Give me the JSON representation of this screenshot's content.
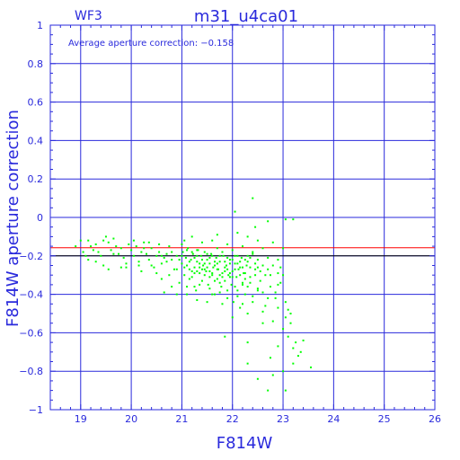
{
  "header": {
    "left_label": "WF3",
    "title": "m31_u4ca01"
  },
  "annotation": "Average aperture correction: −0.158",
  "colors": {
    "axis": "#2a2adc",
    "grid": "#2a2adc",
    "points": "#00ff00",
    "average_line": "#ff0000",
    "zero_ref_line": "#000000"
  },
  "chart_data": {
    "type": "scatter",
    "title": "m31_u4ca01",
    "xlabel": "F814W",
    "ylabel": "F814W aperture correction",
    "xlim": [
      18.4,
      26
    ],
    "ylim": [
      -1,
      1
    ],
    "x_ticks": [
      19,
      20,
      21,
      22,
      23,
      24,
      25,
      26
    ],
    "y_ticks": [
      -1,
      -0.8,
      -0.6,
      -0.4,
      -0.2,
      0,
      0.2,
      0.4,
      0.6,
      0.8,
      1
    ],
    "x_tick_labels": [
      "19",
      "20",
      "21",
      "22",
      "23",
      "24",
      "25",
      "26"
    ],
    "y_tick_labels": [
      "−1",
      "−0.8",
      "−0.6",
      "−0.4",
      "−0.2",
      "0",
      "0.2",
      "0.4",
      "0.6",
      "0.8",
      "1"
    ],
    "grid": true,
    "average_value": -0.158,
    "reference_value": -0.2,
    "points": [
      [
        19.0,
        -0.12
      ],
      [
        19.05,
        -0.18
      ],
      [
        19.1,
        -0.2
      ],
      [
        19.15,
        -0.22
      ],
      [
        19.2,
        -0.15
      ],
      [
        19.3,
        -0.14
      ],
      [
        19.35,
        -0.18
      ],
      [
        19.4,
        -0.2
      ],
      [
        19.45,
        -0.12
      ],
      [
        19.5,
        -0.1
      ],
      [
        19.55,
        -0.13
      ],
      [
        19.6,
        -0.17
      ],
      [
        19.65,
        -0.11
      ],
      [
        19.7,
        -0.15
      ],
      [
        19.75,
        -0.19
      ],
      [
        19.8,
        -0.16
      ],
      [
        19.85,
        -0.21
      ],
      [
        19.9,
        -0.24
      ],
      [
        19.95,
        -0.14
      ],
      [
        20.0,
        -0.17
      ],
      [
        20.05,
        -0.2
      ],
      [
        20.1,
        -0.15
      ],
      [
        20.15,
        -0.23
      ],
      [
        20.2,
        -0.18
      ],
      [
        20.25,
        -0.13
      ],
      [
        20.3,
        -0.19
      ],
      [
        20.35,
        -0.22
      ],
      [
        20.4,
        -0.16
      ],
      [
        20.45,
        -0.26
      ],
      [
        20.5,
        -0.2
      ],
      [
        20.55,
        -0.18
      ],
      [
        20.6,
        -0.24
      ],
      [
        20.65,
        -0.21
      ],
      [
        20.7,
        -0.19
      ],
      [
        20.75,
        -0.3
      ],
      [
        20.8,
        -0.22
      ],
      [
        20.85,
        -0.27
      ],
      [
        20.9,
        -0.2
      ],
      [
        20.95,
        -0.34
      ],
      [
        21.0,
        -0.24
      ],
      [
        21.02,
        -0.18
      ],
      [
        21.05,
        -0.3
      ],
      [
        21.08,
        -0.21
      ],
      [
        21.1,
        -0.36
      ],
      [
        21.12,
        -0.16
      ],
      [
        21.15,
        -0.27
      ],
      [
        21.18,
        -0.22
      ],
      [
        21.2,
        -0.31
      ],
      [
        21.22,
        -0.19
      ],
      [
        21.25,
        -0.26
      ],
      [
        21.28,
        -0.38
      ],
      [
        21.3,
        -0.23
      ],
      [
        21.32,
        -0.17
      ],
      [
        21.35,
        -0.29
      ],
      [
        21.38,
        -0.2
      ],
      [
        21.4,
        -0.33
      ],
      [
        21.42,
        -0.25
      ],
      [
        21.45,
        -0.18
      ],
      [
        21.48,
        -0.28
      ],
      [
        21.5,
        -0.22
      ],
      [
        21.52,
        -0.35
      ],
      [
        21.55,
        -0.24
      ],
      [
        21.58,
        -0.19
      ],
      [
        21.6,
        -0.3
      ],
      [
        21.62,
        -0.26
      ],
      [
        21.65,
        -0.4
      ],
      [
        21.68,
        -0.21
      ],
      [
        21.7,
        -0.32
      ],
      [
        21.72,
        -0.27
      ],
      [
        21.75,
        -0.23
      ],
      [
        21.78,
        -0.36
      ],
      [
        21.8,
        -0.29
      ],
      [
        21.82,
        -0.2
      ],
      [
        21.85,
        -0.33
      ],
      [
        21.88,
        -0.25
      ],
      [
        21.9,
        -0.42
      ],
      [
        21.92,
        -0.3
      ],
      [
        21.95,
        -0.22
      ],
      [
        21.98,
        -0.35
      ],
      [
        22.0,
        -0.28
      ],
      [
        22.02,
        -0.44
      ],
      [
        22.05,
        -0.24
      ],
      [
        22.08,
        -0.31
      ],
      [
        22.1,
        -0.38
      ],
      [
        22.12,
        -0.27
      ],
      [
        22.15,
        -0.47
      ],
      [
        22.18,
        -0.21
      ],
      [
        22.2,
        -0.34
      ],
      [
        22.22,
        -0.29
      ],
      [
        22.25,
        -0.4
      ],
      [
        22.28,
        -0.25
      ],
      [
        22.3,
        -0.36
      ],
      [
        22.35,
        -0.31
      ],
      [
        22.4,
        -0.44
      ],
      [
        22.45,
        -0.27
      ],
      [
        22.5,
        -0.38
      ],
      [
        22.55,
        -0.33
      ],
      [
        22.6,
        -0.49
      ],
      [
        22.65,
        -0.3
      ],
      [
        22.7,
        -0.42
      ],
      [
        22.75,
        -0.36
      ],
      [
        22.8,
        -0.54
      ],
      [
        22.85,
        -0.39
      ],
      [
        22.9,
        -0.47
      ],
      [
        22.95,
        -0.34
      ],
      [
        23.0,
        -0.58
      ],
      [
        23.05,
        -0.44
      ],
      [
        23.1,
        -0.62
      ],
      [
        23.15,
        -0.5
      ],
      [
        23.2,
        -0.68
      ],
      [
        23.3,
        -0.72
      ],
      [
        23.4,
        -0.64
      ],
      [
        23.55,
        -0.78
      ],
      [
        21.0,
        -0.2
      ],
      [
        21.1,
        -0.25
      ],
      [
        21.2,
        -0.18
      ],
      [
        21.3,
        -0.28
      ],
      [
        21.4,
        -0.22
      ],
      [
        21.5,
        -0.26
      ],
      [
        21.6,
        -0.2
      ],
      [
        21.7,
        -0.24
      ],
      [
        21.8,
        -0.18
      ],
      [
        21.9,
        -0.27
      ],
      [
        22.0,
        -0.22
      ],
      [
        22.1,
        -0.2
      ],
      [
        22.2,
        -0.26
      ],
      [
        22.3,
        -0.23
      ],
      [
        22.4,
        -0.19
      ],
      [
        22.5,
        -0.22
      ],
      [
        22.6,
        -0.25
      ],
      [
        21.25,
        -0.21
      ],
      [
        21.35,
        -0.24
      ],
      [
        21.45,
        -0.27
      ],
      [
        21.55,
        -0.21
      ],
      [
        21.65,
        -0.23
      ],
      [
        21.75,
        -0.2
      ],
      [
        21.85,
        -0.28
      ],
      [
        21.95,
        -0.24
      ],
      [
        22.05,
        -0.2
      ],
      [
        22.15,
        -0.3
      ],
      [
        22.25,
        -0.22
      ],
      [
        22.35,
        -0.26
      ],
      [
        20.9,
        -0.27
      ],
      [
        20.8,
        -0.18
      ],
      [
        20.7,
        -0.23
      ],
      [
        20.6,
        -0.2
      ],
      [
        20.95,
        -0.22
      ],
      [
        21.15,
        -0.32
      ],
      [
        21.35,
        -0.35
      ],
      [
        21.55,
        -0.31
      ],
      [
        21.75,
        -0.34
      ],
      [
        21.95,
        -0.31
      ],
      [
        22.15,
        -0.26
      ],
      [
        22.35,
        -0.34
      ],
      [
        22.55,
        -0.28
      ],
      [
        22.75,
        -0.3
      ],
      [
        22.95,
        -0.26
      ],
      [
        23.0,
        -0.3
      ],
      [
        22.9,
        -0.22
      ],
      [
        22.8,
        -0.25
      ],
      [
        22.7,
        -0.21
      ],
      [
        21.2,
        -0.1
      ],
      [
        21.6,
        -0.12
      ],
      [
        21.9,
        -0.14
      ],
      [
        22.1,
        -0.08
      ],
      [
        22.3,
        -0.1
      ],
      [
        22.5,
        -0.12
      ],
      [
        22.8,
        -0.13
      ],
      [
        23.0,
        -0.16
      ],
      [
        21.7,
        -0.09
      ],
      [
        21.4,
        -0.13
      ],
      [
        21.0,
        -0.14
      ],
      [
        22.2,
        -0.15
      ],
      [
        22.6,
        -0.16
      ],
      [
        22.4,
        0.1
      ],
      [
        22.05,
        0.03
      ],
      [
        22.7,
        -0.02
      ],
      [
        23.05,
        -0.01
      ],
      [
        23.2,
        -0.01
      ],
      [
        22.45,
        -0.05
      ],
      [
        21.5,
        -0.44
      ],
      [
        21.8,
        -0.45
      ],
      [
        22.0,
        -0.52
      ],
      [
        22.3,
        -0.5
      ],
      [
        22.6,
        -0.55
      ],
      [
        22.3,
        -0.65
      ],
      [
        21.85,
        -0.62
      ],
      [
        23.25,
        -0.65
      ],
      [
        23.35,
        -0.7
      ],
      [
        22.9,
        -0.67
      ],
      [
        22.75,
        -0.73
      ],
      [
        23.0,
        -0.8
      ],
      [
        22.8,
        -0.82
      ],
      [
        22.5,
        -0.84
      ],
      [
        22.7,
        -0.9
      ],
      [
        23.05,
        -0.9
      ],
      [
        22.3,
        -0.76
      ],
      [
        23.2,
        -0.76
      ],
      [
        20.2,
        -0.28
      ],
      [
        20.4,
        -0.25
      ],
      [
        20.5,
        -0.29
      ],
      [
        20.6,
        -0.32
      ],
      [
        20.8,
        -0.36
      ],
      [
        20.9,
        -0.4
      ],
      [
        20.65,
        -0.39
      ],
      [
        19.55,
        -0.27
      ],
      [
        19.8,
        -0.26
      ],
      [
        19.3,
        -0.23
      ],
      [
        18.9,
        -0.15
      ],
      [
        19.9,
        -0.26
      ],
      [
        20.35,
        -0.13
      ],
      [
        20.15,
        -0.25
      ],
      [
        21.1,
        -0.4
      ],
      [
        21.3,
        -0.43
      ],
      [
        21.6,
        -0.4
      ],
      [
        21.9,
        -0.38
      ],
      [
        22.2,
        -0.45
      ],
      [
        22.4,
        -0.41
      ],
      [
        22.65,
        -0.46
      ],
      [
        22.85,
        -0.42
      ],
      [
        23.1,
        -0.48
      ],
      [
        23.15,
        -0.55
      ],
      [
        23.05,
        -0.52
      ],
      [
        21.45,
        -0.3
      ],
      [
        21.65,
        -0.33
      ],
      [
        21.85,
        -0.26
      ],
      [
        22.05,
        -0.36
      ],
      [
        22.25,
        -0.32
      ],
      [
        22.45,
        -0.3
      ],
      [
        20.75,
        -0.15
      ],
      [
        21.05,
        -0.12
      ],
      [
        20.55,
        -0.14
      ],
      [
        20.25,
        -0.16
      ],
      [
        20.05,
        -0.12
      ],
      [
        19.65,
        -0.19
      ],
      [
        19.25,
        -0.17
      ],
      [
        19.45,
        -0.25
      ],
      [
        19.15,
        -0.12
      ],
      [
        21.25,
        -0.36
      ],
      [
        21.55,
        -0.37
      ],
      [
        21.75,
        -0.39
      ],
      [
        22.1,
        -0.41
      ],
      [
        22.5,
        -0.37
      ],
      [
        22.9,
        -0.35
      ],
      [
        21.3,
        -0.17
      ],
      [
        21.7,
        -0.16
      ],
      [
        22.0,
        -0.17
      ],
      [
        22.4,
        -0.18
      ],
      [
        22.0,
        -0.31
      ],
      [
        21.4,
        -0.27
      ],
      [
        21.2,
        -0.28
      ],
      [
        21.6,
        -0.29
      ],
      [
        21.8,
        -0.31
      ],
      [
        22.2,
        -0.35
      ],
      [
        22.6,
        -0.39
      ],
      [
        21.1,
        -0.17
      ],
      [
        21.3,
        -0.2
      ],
      [
        21.5,
        -0.19
      ],
      [
        21.7,
        -0.27
      ],
      [
        21.9,
        -0.21
      ],
      [
        22.1,
        -0.24
      ],
      [
        22.3,
        -0.2
      ],
      [
        22.5,
        -0.26
      ],
      [
        22.7,
        -0.27
      ],
      [
        22.9,
        -0.29
      ],
      [
        21.05,
        -0.26
      ],
      [
        21.15,
        -0.23
      ],
      [
        21.25,
        -0.29
      ],
      [
        21.35,
        -0.26
      ],
      [
        21.45,
        -0.24
      ],
      [
        21.55,
        -0.28
      ],
      [
        21.65,
        -0.25
      ],
      [
        21.75,
        -0.3
      ],
      [
        21.85,
        -0.23
      ],
      [
        21.95,
        -0.29
      ],
      [
        22.05,
        -0.27
      ],
      [
        22.15,
        -0.23
      ],
      [
        22.25,
        -0.29
      ],
      [
        22.35,
        -0.21
      ],
      [
        22.45,
        -0.24
      ]
    ]
  }
}
